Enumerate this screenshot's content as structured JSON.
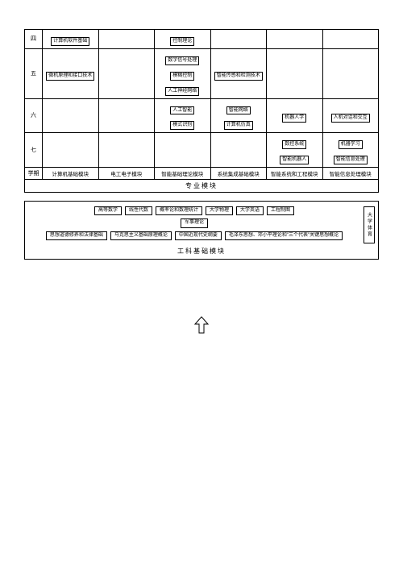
{
  "colors": {
    "border": "#000000",
    "background": "#ffffff",
    "text": "#000000"
  },
  "plan": {
    "semester_label": "学期",
    "span_title": "专业模块",
    "module_headers": [
      "计算机基础模块",
      "电工电子模块",
      "智能基础理论模块",
      "系统集成基础模块",
      "智能系统和工程模块",
      "智能信息处理模块"
    ],
    "rows": [
      {
        "sem": "四",
        "cells": [
          [
            "计算机软件基础"
          ],
          [],
          [
            "控制理论"
          ],
          [],
          [],
          []
        ]
      },
      {
        "sem": "五",
        "cells": [
          [
            "微机原理和接口技术"
          ],
          [],
          [
            "数字信号处理",
            "模糊控制",
            "人工神经网络"
          ],
          [
            "智能传感和检测技术"
          ],
          [],
          []
        ]
      },
      {
        "sem": "六",
        "cells": [
          [],
          [],
          [
            "人工智能",
            "模式识别"
          ],
          [
            "智能网络",
            "计算机仿真"
          ],
          [
            "机器人学"
          ],
          [
            "人机对话和交互"
          ]
        ]
      },
      {
        "sem": "七",
        "cells": [
          [],
          [],
          [],
          [],
          [
            "数控系统",
            "智能机器人"
          ],
          [
            "机器学习",
            "智能信息处理"
          ]
        ]
      }
    ]
  },
  "foundation": {
    "title": "工科基础模块",
    "side": "大学体育",
    "rows": [
      [
        "高等数学",
        "线性代数",
        "概率论和数理统计",
        "大学物理",
        "大学英语",
        "工程制图"
      ],
      [
        "军事理论"
      ],
      [
        "思想道德修养和法律基础",
        "马克思主义基础原理概论",
        "中国近现代史纲要",
        "毛泽东思想、邓小平理论和\"三个代表\"关键思想概论"
      ]
    ]
  },
  "arrow": {
    "stroke": "#000000",
    "fill": "#ffffff"
  }
}
